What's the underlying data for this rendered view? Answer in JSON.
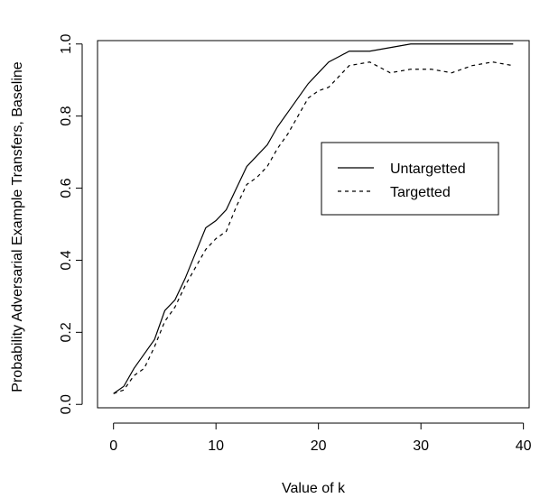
{
  "chart_data": {
    "type": "line",
    "xlabel": "Value of k",
    "ylabel": "Probability Adversarial Example Transfers, Baseline",
    "xlim": [
      -1.56,
      40.56
    ],
    "ylim": [
      -0.0094,
      1.0094
    ],
    "x_ticks": [
      0,
      10,
      20,
      30,
      40
    ],
    "y_ticks": [
      0.0,
      0.2,
      0.4,
      0.6,
      0.8,
      1.0
    ],
    "x_tick_labels": [
      "0",
      "10",
      "20",
      "30",
      "40"
    ],
    "y_tick_labels": [
      "0.0",
      "0.2",
      "0.4",
      "0.6",
      "0.8",
      "1.0"
    ],
    "grid": false,
    "legend_position": "right",
    "series": [
      {
        "name": "Untargetted",
        "line_style": "solid",
        "color": "#000000",
        "x": [
          0,
          1,
          2,
          3,
          4,
          5,
          6,
          7,
          8,
          9,
          10,
          11,
          12,
          13,
          14,
          15,
          16,
          17,
          18,
          19,
          20,
          21,
          22,
          23,
          24,
          25,
          26,
          27,
          28,
          29,
          30,
          31,
          32,
          33,
          34,
          35,
          36,
          37,
          38,
          39
        ],
        "y": [
          0.03,
          0.05,
          0.1,
          0.14,
          0.18,
          0.26,
          0.29,
          0.35,
          0.42,
          0.49,
          0.51,
          0.54,
          0.6,
          0.66,
          0.69,
          0.72,
          0.77,
          0.81,
          0.85,
          0.89,
          0.92,
          0.95,
          0.965,
          0.98,
          0.98,
          0.98,
          0.985,
          0.99,
          0.995,
          1.0,
          1.0,
          1.0,
          1.0,
          1.0,
          1.0,
          1.0,
          1.0,
          1.0,
          1.0,
          1.0
        ]
      },
      {
        "name": "Targetted",
        "line_style": "dashed",
        "color": "#000000",
        "x": [
          0,
          1,
          2,
          3,
          4,
          5,
          6,
          7,
          8,
          9,
          10,
          11,
          12,
          13,
          14,
          15,
          16,
          17,
          18,
          19,
          20,
          21,
          22,
          23,
          24,
          25,
          26,
          27,
          28,
          29,
          30,
          31,
          32,
          33,
          34,
          35,
          36,
          37,
          38,
          39
        ],
        "y": [
          0.03,
          0.04,
          0.08,
          0.1,
          0.16,
          0.23,
          0.27,
          0.33,
          0.38,
          0.43,
          0.46,
          0.48,
          0.55,
          0.61,
          0.63,
          0.66,
          0.71,
          0.75,
          0.8,
          0.85,
          0.87,
          0.88,
          0.91,
          0.94,
          0.945,
          0.95,
          0.935,
          0.92,
          0.925,
          0.93,
          0.93,
          0.93,
          0.925,
          0.92,
          0.93,
          0.94,
          0.945,
          0.95,
          0.945,
          0.94
        ]
      }
    ]
  }
}
